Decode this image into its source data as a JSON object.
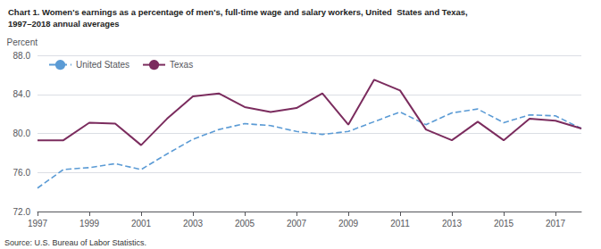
{
  "chart_data": {
    "type": "line",
    "title": "Chart 1. Women's earnings as a percentage of men's, full-time wage and salary workers, United  States and Texas,",
    "subtitle": "1997–2018 annual averages",
    "ylabel": "Percent",
    "annotations": [
      "Source: U.S. Bureau of Labor Statistics."
    ],
    "x": [
      1997,
      1998,
      1999,
      2000,
      2001,
      2002,
      2003,
      2004,
      2005,
      2006,
      2007,
      2008,
      2009,
      2010,
      2011,
      2012,
      2013,
      2014,
      2015,
      2016,
      2017,
      2018
    ],
    "series": [
      {
        "name": "United States",
        "color": "#5b9bd5",
        "line_style": "dashed",
        "values": [
          74.4,
          76.3,
          76.5,
          76.9,
          76.3,
          77.9,
          79.4,
          80.4,
          81.0,
          80.8,
          80.2,
          79.9,
          80.2,
          81.2,
          82.2,
          80.9,
          82.1,
          82.5,
          81.1,
          81.9,
          81.8,
          80.5
        ]
      },
      {
        "name": "Texas",
        "color": "#7b2c5e",
        "line_style": "solid",
        "values": [
          79.3,
          79.3,
          81.1,
          81.0,
          78.8,
          81.5,
          83.8,
          84.1,
          82.7,
          82.2,
          82.6,
          84.1,
          80.9,
          85.5,
          84.4,
          80.4,
          79.3,
          81.2,
          79.3,
          81.5,
          81.3,
          80.5
        ]
      }
    ],
    "xlim": [
      1997,
      2018
    ],
    "xticks": [
      1997,
      1999,
      2001,
      2003,
      2005,
      2007,
      2009,
      2011,
      2013,
      2015,
      2017
    ],
    "ylim": [
      72,
      88
    ],
    "yticks": [
      {
        "value": 72,
        "label": "72.0"
      },
      {
        "value": 76,
        "label": "76.0"
      },
      {
        "value": 80,
        "label": "80.0"
      },
      {
        "value": 84,
        "label": "84.0"
      },
      {
        "value": 88,
        "label": "88.0"
      }
    ],
    "grid": "y",
    "legend": "upper left"
  }
}
